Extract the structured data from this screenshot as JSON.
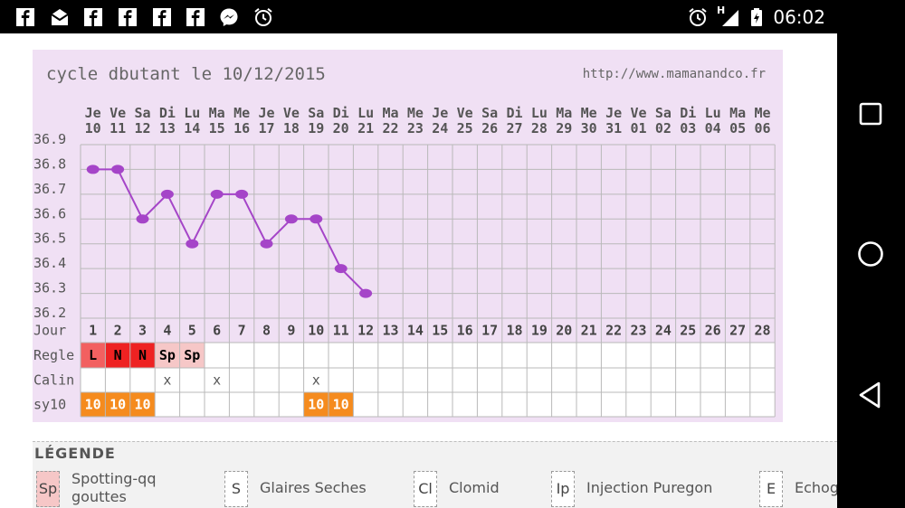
{
  "status_bar": {
    "time": "06:02",
    "left_icons": [
      "facebook-icon",
      "inbox-icon",
      "facebook-icon",
      "facebook-icon",
      "facebook-icon",
      "facebook-icon",
      "messenger-icon",
      "alarm-icon"
    ],
    "right_icons": [
      "alarm-icon",
      "signal-icon",
      "battery-icon"
    ],
    "network_label": "H"
  },
  "chart": {
    "title": "cycle dbutant le 10/12/2015",
    "url": "http://www.mamanandco.fr",
    "day_abbr": [
      "Je",
      "Ve",
      "Sa",
      "Di",
      "Lu",
      "Ma",
      "Me",
      "Je",
      "Ve",
      "Sa",
      "Di",
      "Lu",
      "Ma",
      "Me",
      "Je",
      "Ve",
      "Sa",
      "Di",
      "Lu",
      "Ma",
      "Me",
      "Je",
      "Ve",
      "Sa",
      "Di",
      "Lu",
      "Ma",
      "Me"
    ],
    "day_num": [
      "10",
      "11",
      "12",
      "13",
      "14",
      "15",
      "16",
      "17",
      "18",
      "19",
      "20",
      "21",
      "22",
      "23",
      "24",
      "25",
      "26",
      "27",
      "28",
      "29",
      "30",
      "31",
      "01",
      "02",
      "03",
      "04",
      "05",
      "06"
    ],
    "y_ticks": [
      "36.9",
      "36.8",
      "36.7",
      "36.6",
      "36.5",
      "36.4",
      "36.3",
      "36.2"
    ],
    "row_labels": {
      "jour": "Jour",
      "regle": "Regle",
      "calin": "Calin",
      "sy10": "sy10"
    },
    "jour_values": [
      "1",
      "2",
      "3",
      "4",
      "5",
      "6",
      "7",
      "8",
      "9",
      "10",
      "11",
      "12",
      "13",
      "14",
      "15",
      "16",
      "17",
      "18",
      "19",
      "20",
      "21",
      "22",
      "23",
      "24",
      "25",
      "26",
      "27",
      "28"
    ],
    "regle_values": [
      "L",
      "N",
      "N",
      "Sp",
      "Sp",
      "",
      "",
      "",
      "",
      "",
      "",
      "",
      "",
      "",
      "",
      "",
      "",
      "",
      "",
      "",
      "",
      "",
      "",
      "",
      "",
      "",
      "",
      ""
    ],
    "calin_values": [
      "",
      "",
      "",
      "x",
      "",
      "x",
      "",
      "",
      "",
      "x",
      "",
      "",
      "",
      "",
      "",
      "",
      "",
      "",
      "",
      "",
      "",
      "",
      "",
      "",
      "",
      "",
      "",
      ""
    ],
    "sy10_values": [
      "10",
      "10",
      "10",
      "",
      "",
      "",
      "",
      "",
      "",
      "10",
      "10",
      "",
      "",
      "",
      "",
      "",
      "",
      "",
      "",
      "",
      "",
      "",
      "",
      "",
      "",
      "",
      "",
      ""
    ],
    "colors": {
      "panel": "#f0e0f4",
      "grid": "#b9b9b9",
      "line": "#a545c8",
      "regle_L": "#f26060",
      "regle_N": "#ee2222",
      "regle_Sp": "#f6c7c7",
      "sy10": "#f58b1e"
    }
  },
  "chart_data": {
    "type": "line",
    "x": [
      "10",
      "11",
      "12",
      "13",
      "14",
      "15",
      "16",
      "17",
      "18",
      "19",
      "20",
      "21"
    ],
    "series": [
      {
        "values": [
          36.8,
          36.8,
          36.6,
          36.7,
          36.5,
          36.7,
          36.7,
          36.5,
          36.6,
          36.6,
          36.4,
          36.3
        ]
      }
    ],
    "ylim": [
      36.2,
      36.9
    ],
    "grid": true
  },
  "legend": {
    "title": "LÉGENDE",
    "items": [
      {
        "code": "Sp",
        "label": "Spotting-qq gouttes",
        "line1": "Spotting-qq",
        "line2": "gouttes"
      },
      {
        "code": "S",
        "label": "Glaires Seches"
      },
      {
        "code": "Cl",
        "label": "Clomid"
      },
      {
        "code": "Ip",
        "label": "Injection Puregon"
      },
      {
        "code": "E",
        "label": "Echog"
      }
    ]
  }
}
